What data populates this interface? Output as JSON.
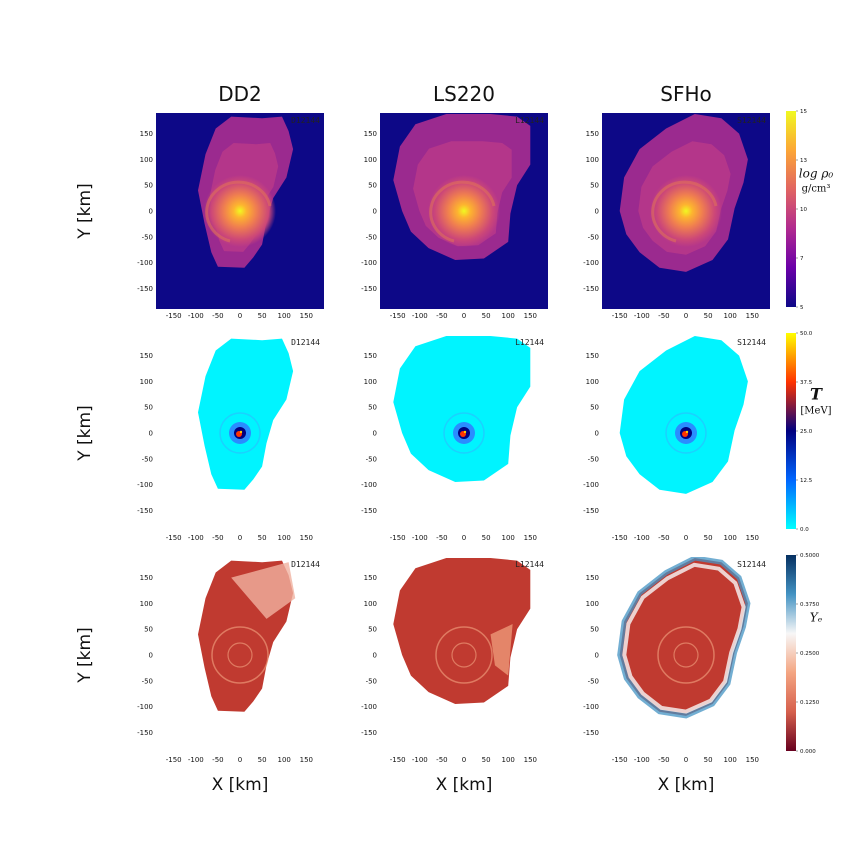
{
  "chart_data": {
    "type": "heatmap",
    "column_titles": [
      "DD2",
      "LS220",
      "SFHo"
    ],
    "run_labels": [
      "D12144",
      "L12144",
      "S12144"
    ],
    "xlabel": "X [km]",
    "ylabel": "Y [km]",
    "xlim": [
      -190,
      190
    ],
    "ylim": [
      -190,
      190
    ],
    "x_ticks": [
      -150,
      -100,
      -50,
      0,
      50,
      100,
      150
    ],
    "y_ticks": [
      150,
      100,
      50,
      0,
      -50,
      -100,
      -150
    ],
    "rows": [
      {
        "quantity": "log rest-mass density",
        "colorbar_label": "log ρ₀",
        "colorbar_unit": "g/cm³",
        "colorbar_min": 5,
        "colorbar_max": 15,
        "colorbar_ticks": [
          "15",
          "13",
          "10",
          "7",
          "5"
        ],
        "colormap": "plasma",
        "colors": [
          "#f0f921",
          "#fca636",
          "#e16462",
          "#b12a90",
          "#6a00a8",
          "#0d0887"
        ]
      },
      {
        "quantity": "temperature",
        "colorbar_label": "T",
        "colorbar_unit": "[MeV]",
        "colorbar_min": 0,
        "colorbar_max": 50,
        "colorbar_ticks": [
          "50.0",
          "37.5",
          "25.0",
          "12.5",
          "0.0"
        ],
        "colormap": "cyan-blue-red-yellow",
        "colors": [
          "#ffff00",
          "#ff3300",
          "#000080",
          "#0066ff",
          "#00ffff"
        ]
      },
      {
        "quantity": "electron fraction",
        "colorbar_label": "Yₑ",
        "colorbar_min": 0,
        "colorbar_max": 0.5,
        "colorbar_ticks": [
          "0.5000",
          "0.3750",
          "0.2500",
          "0.1250",
          "0.000"
        ],
        "colormap": "RdBu",
        "colors": [
          "#053061",
          "#4393c3",
          "#f7f7f7",
          "#f4a582",
          "#d6604d",
          "#67001f"
        ]
      }
    ]
  }
}
